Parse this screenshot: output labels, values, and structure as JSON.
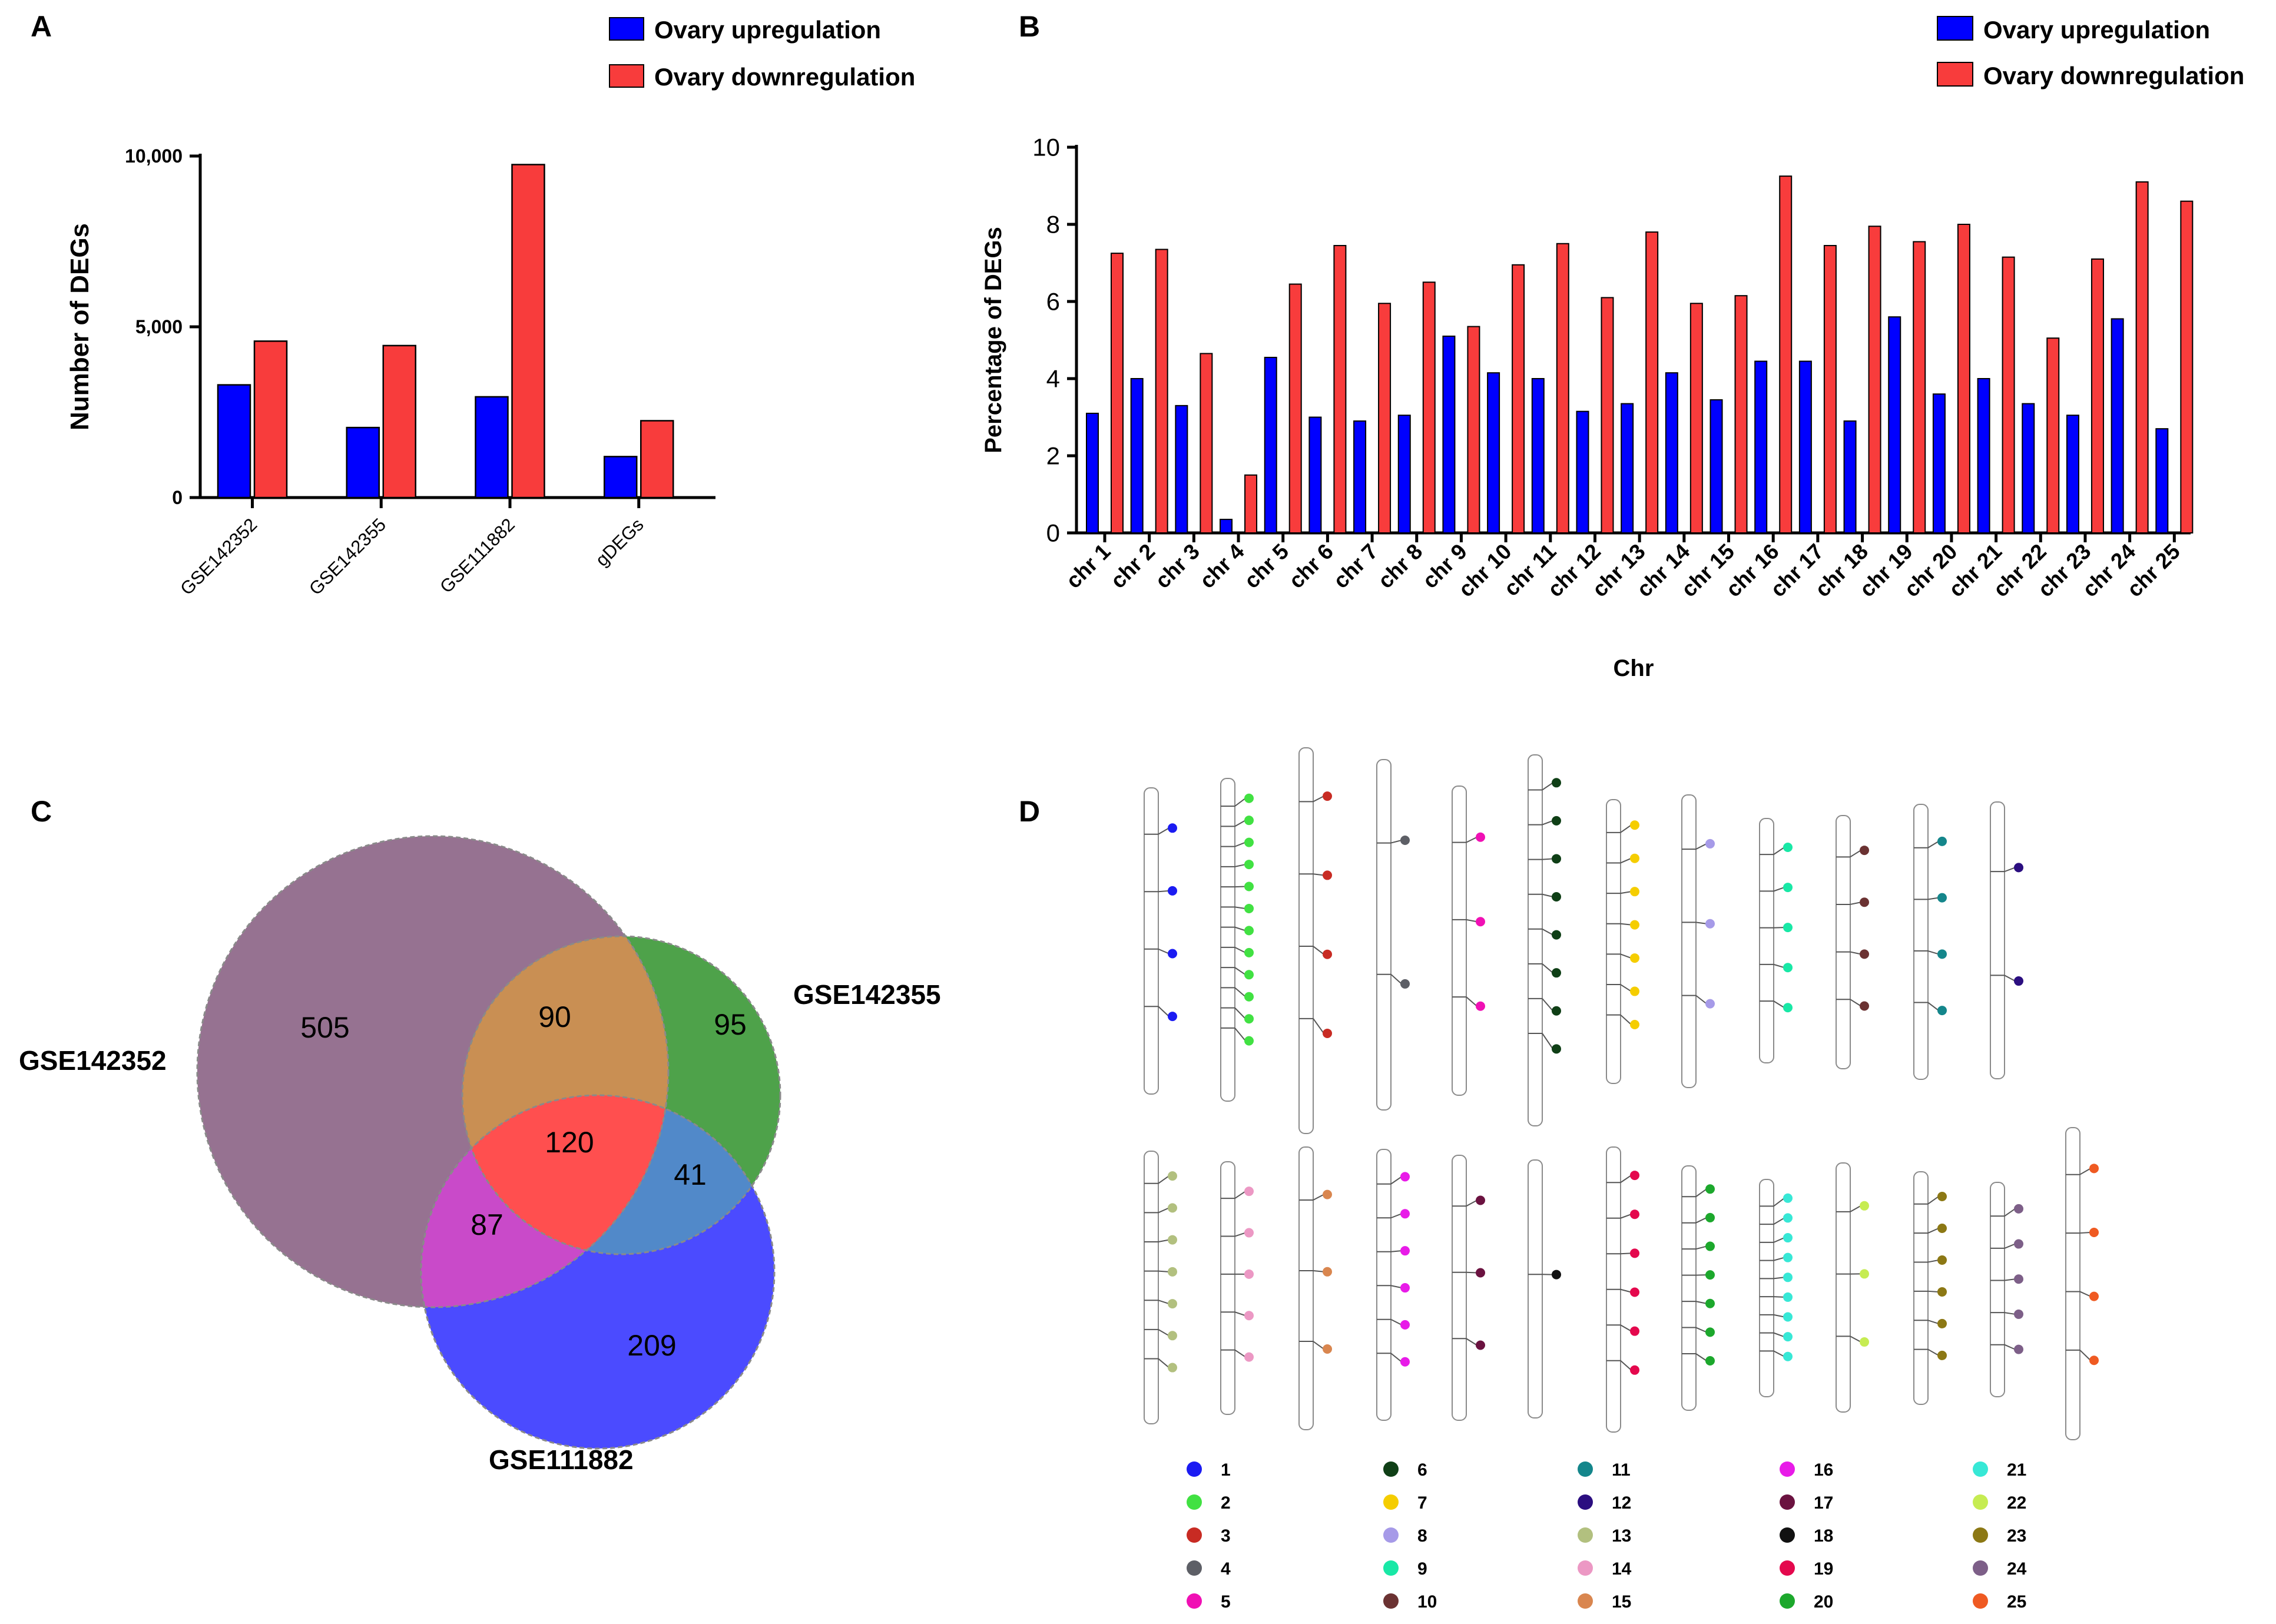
{
  "panels": {
    "a": {
      "letter": "A"
    },
    "b": {
      "letter": "B"
    },
    "c": {
      "letter": "C"
    },
    "d": {
      "letter": "D"
    }
  },
  "chart_data": [
    {
      "id": "A",
      "type": "bar",
      "title": "",
      "xlabel": "",
      "ylabel": "Number of DEGs",
      "ylim": [
        0,
        10000
      ],
      "yticks": [
        0,
        5000,
        10000
      ],
      "ytick_labels": [
        "0",
        "5,000",
        "10,000"
      ],
      "categories": [
        "GSE142352",
        "GSE142355",
        "GSE111882",
        "gDEGs"
      ],
      "series": [
        {
          "name": "Ovary upregulation",
          "color": "#0000ff",
          "values": [
            3300,
            2050,
            2950,
            1200
          ]
        },
        {
          "name": "Ovary downregulation",
          "color": "#f83c3c",
          "values": [
            4580,
            4450,
            9750,
            2250
          ]
        }
      ],
      "legend": "top-right"
    },
    {
      "id": "B",
      "type": "bar",
      "title": "",
      "xlabel": "Chr",
      "ylabel": "Percentage of DEGs",
      "ylim": [
        0,
        10
      ],
      "yticks": [
        0,
        2,
        4,
        6,
        8,
        10
      ],
      "ytick_labels": [
        "0",
        "2",
        "4",
        "6",
        "8",
        "10"
      ],
      "categories": [
        "chr1",
        "chr2",
        "chr3",
        "chr4",
        "chr5",
        "chr6",
        "chr7",
        "chr8",
        "chr9",
        "chr10",
        "chr11",
        "chr12",
        "chr13",
        "chr14",
        "chr15",
        "chr16",
        "chr17",
        "chr18",
        "chr19",
        "chr20",
        "chr21",
        "chr22",
        "chr23",
        "chr24",
        "chr25"
      ],
      "series": [
        {
          "name": "Ovary upregulation",
          "color": "#0000ff",
          "values": [
            3.1,
            4.0,
            3.3,
            0.35,
            4.55,
            3.0,
            2.9,
            3.05,
            5.1,
            4.15,
            4.0,
            3.15,
            3.35,
            4.15,
            3.45,
            4.45,
            4.45,
            2.9,
            5.6,
            3.6,
            4.0,
            3.35,
            3.05,
            5.55,
            2.7
          ]
        },
        {
          "name": "Ovary downregulation",
          "color": "#f83c3c",
          "values": [
            7.25,
            7.35,
            4.65,
            1.5,
            6.45,
            7.45,
            5.95,
            6.5,
            5.35,
            6.95,
            7.5,
            6.1,
            7.8,
            5.95,
            6.15,
            9.25,
            7.45,
            7.95,
            7.55,
            8.0,
            7.15,
            5.05,
            7.1,
            9.1,
            8.6
          ]
        }
      ],
      "legend": "top-right"
    },
    {
      "id": "C",
      "type": "venn",
      "sets": [
        "GSE142352",
        "GSE142355",
        "GSE111882"
      ],
      "regions": [
        {
          "name": "GSE142352 only",
          "value": 505,
          "color": "#967291"
        },
        {
          "name": "GSE142355 only",
          "value": 95,
          "color": "#4ea24a"
        },
        {
          "name": "GSE111882 only",
          "value": 209,
          "color": "#4b4bff"
        },
        {
          "name": "GSE142352 & GSE142355",
          "value": 90,
          "color": "#c98f53"
        },
        {
          "name": "GSE142352 & GSE111882",
          "value": 87,
          "color": "#c94ac9"
        },
        {
          "name": "GSE142355 & GSE111882",
          "value": 41,
          "color": "#5189c9"
        },
        {
          "name": "all three",
          "value": 120,
          "color": "#ff4f4f"
        }
      ]
    },
    {
      "id": "D",
      "type": "chromosome-map",
      "legend_entries": [
        {
          "label": "1",
          "color": "#1b1bf2"
        },
        {
          "label": "2",
          "color": "#41e142"
        },
        {
          "label": "3",
          "color": "#c82b23"
        },
        {
          "label": "4",
          "color": "#5d5f66"
        },
        {
          "label": "5",
          "color": "#f010b4"
        },
        {
          "label": "6",
          "color": "#0f3f16"
        },
        {
          "label": "7",
          "color": "#f5cd00"
        },
        {
          "label": "8",
          "color": "#a69ae8"
        },
        {
          "label": "9",
          "color": "#18e8a6"
        },
        {
          "label": "10",
          "color": "#6b3232"
        },
        {
          "label": "11",
          "color": "#14868b"
        },
        {
          "label": "12",
          "color": "#2b0e80"
        },
        {
          "label": "13",
          "color": "#b2c07f"
        },
        {
          "label": "14",
          "color": "#ec98c4"
        },
        {
          "label": "15",
          "color": "#d9864f"
        },
        {
          "label": "16",
          "color": "#e81be8"
        },
        {
          "label": "17",
          "color": "#6b1240"
        },
        {
          "label": "18",
          "color": "#111111"
        },
        {
          "label": "19",
          "color": "#e4084d"
        },
        {
          "label": "20",
          "color": "#1ca82c"
        },
        {
          "label": "21",
          "color": "#37e8d6"
        },
        {
          "label": "22",
          "color": "#c6ec52"
        },
        {
          "label": "23",
          "color": "#8c7814"
        },
        {
          "label": "24",
          "color": "#7d5f88"
        },
        {
          "label": "25",
          "color": "#ef5a22"
        }
      ],
      "markers_per_chromosome": [
        4,
        12,
        4,
        2,
        3,
        8,
        7,
        3,
        5,
        4,
        4,
        2,
        7,
        5,
        3,
        6,
        3,
        1,
        6,
        7,
        9,
        3,
        6,
        5,
        4
      ]
    }
  ]
}
